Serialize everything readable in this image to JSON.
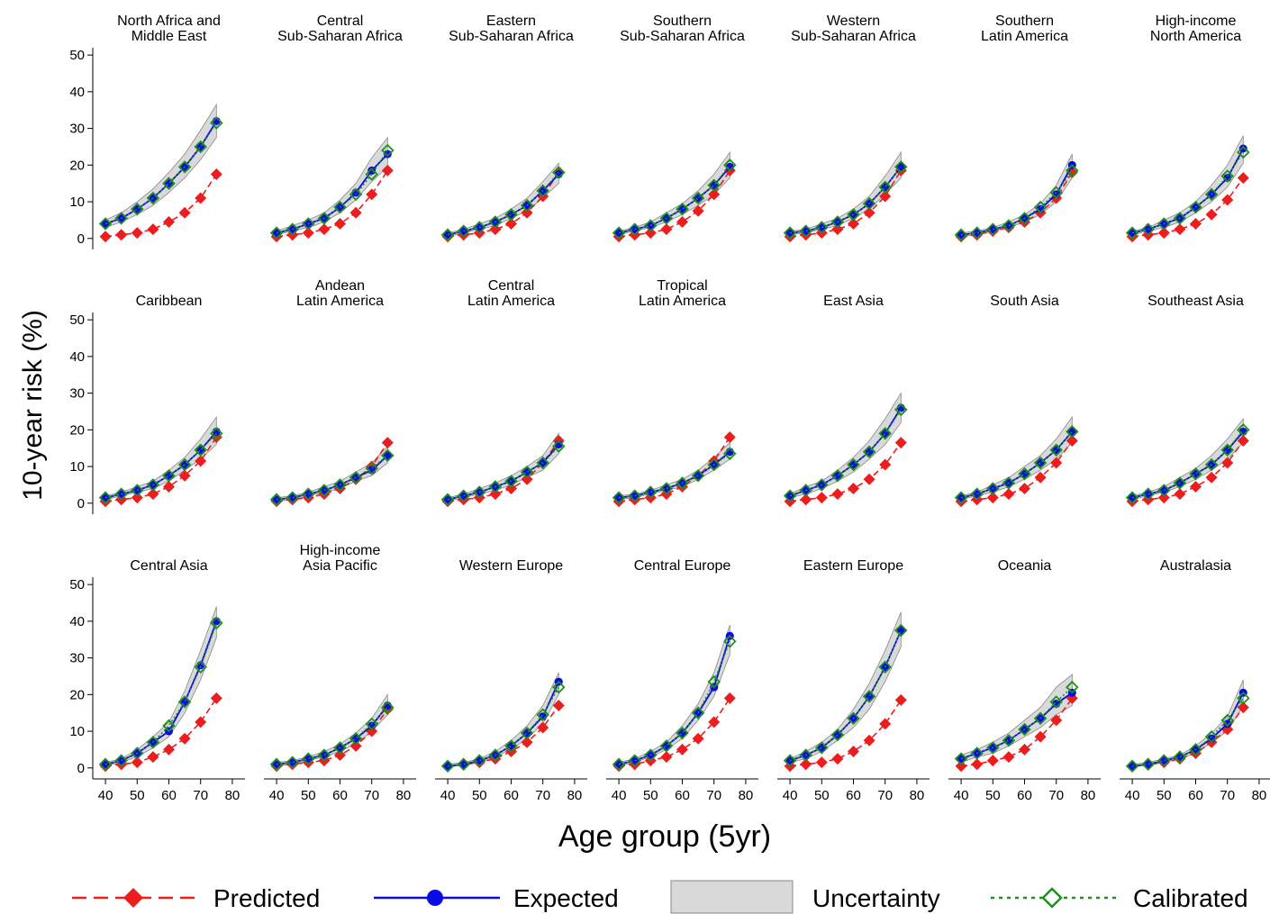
{
  "chart_data": {
    "type": "line",
    "y_label": "10-year risk (%)",
    "x_label": "Age group (5yr)",
    "x": [
      40,
      45,
      50,
      55,
      60,
      65,
      70,
      75
    ],
    "xlim": [
      36,
      84
    ],
    "xticks": [
      40,
      50,
      60,
      70,
      80
    ],
    "ylim": [
      -3,
      52
    ],
    "yticks": [
      0,
      10,
      20,
      30,
      40,
      50
    ],
    "legend": [
      {
        "name": "Predicted",
        "color": "#ee1c1c"
      },
      {
        "name": "Expected",
        "color": "#0a0ae6"
      },
      {
        "name": "Uncertainty",
        "color": "#d9d9d9"
      },
      {
        "name": "Calibrated",
        "color": "#1f8f1f"
      }
    ],
    "panels": [
      {
        "title": [
          "North Africa and",
          "Middle East"
        ],
        "predicted": [
          0.5,
          1,
          1.5,
          2.5,
          4.5,
          7,
          11,
          17.5
        ],
        "expected": [
          4,
          5.5,
          8,
          11,
          15,
          19.5,
          25,
          32
        ],
        "calibrated": [
          4,
          5.5,
          8,
          11,
          15,
          19.5,
          25,
          31.5
        ],
        "lower": [
          3,
          4.5,
          6.5,
          9,
          12.5,
          16.5,
          21.5,
          27.5
        ],
        "upper": [
          5,
          7,
          10,
          13.5,
          18,
          23,
          29.5,
          36.5
        ]
      },
      {
        "title": [
          "Central",
          "Sub-Saharan Africa"
        ],
        "predicted": [
          0.5,
          1,
          1.5,
          2.5,
          4,
          7,
          12,
          18.5
        ],
        "expected": [
          1.5,
          2.5,
          4,
          5.5,
          8.5,
          12.5,
          18.5,
          23
        ],
        "calibrated": [
          1.5,
          2.5,
          4,
          5.5,
          8.5,
          12,
          17.5,
          24
        ],
        "lower": [
          1,
          2,
          3,
          4.5,
          7,
          10.5,
          15.5,
          19.5
        ],
        "upper": [
          2,
          3.5,
          5,
          7,
          10.5,
          15,
          22,
          27.5
        ]
      },
      {
        "title": [
          "Eastern",
          "Sub-Saharan Africa"
        ],
        "predicted": [
          0.5,
          1,
          1.5,
          2.5,
          4,
          7,
          11.5,
          18
        ],
        "expected": [
          1,
          2,
          3,
          4.5,
          6.5,
          9,
          13,
          17.5
        ],
        "calibrated": [
          1,
          2,
          3,
          4.5,
          6.5,
          9,
          13,
          18
        ],
        "lower": [
          0.5,
          1.5,
          2.5,
          3.5,
          5.5,
          7.5,
          11,
          15
        ],
        "upper": [
          1.5,
          2.5,
          4,
          5.5,
          8,
          11,
          15.5,
          20.5
        ]
      },
      {
        "title": [
          "Southern",
          "Sub-Saharan Africa"
        ],
        "predicted": [
          0.5,
          1,
          1.5,
          2.5,
          4.5,
          7.5,
          12,
          18.5
        ],
        "expected": [
          1.5,
          2.5,
          3.5,
          5.5,
          8,
          11,
          14.5,
          19.5
        ],
        "calibrated": [
          1.5,
          2.5,
          3.5,
          5.5,
          8,
          11,
          14.5,
          20
        ],
        "lower": [
          1,
          2,
          3,
          4.5,
          6.5,
          9,
          12,
          16.5
        ],
        "upper": [
          2,
          3,
          4.5,
          7,
          9.5,
          13,
          17.5,
          23.5
        ]
      },
      {
        "title": [
          "Western",
          "Sub-Saharan Africa"
        ],
        "predicted": [
          0.5,
          1,
          1.5,
          2.5,
          4,
          7,
          11.5,
          18.5
        ],
        "expected": [
          1.5,
          2,
          3,
          4.5,
          6.5,
          9.5,
          14,
          19.5
        ],
        "calibrated": [
          1.5,
          2,
          3,
          4.5,
          6.5,
          9.5,
          14,
          19.5
        ],
        "lower": [
          1,
          1.5,
          2.5,
          3.5,
          5.5,
          8,
          12,
          16.5
        ],
        "upper": [
          2,
          2.5,
          4,
          5.5,
          8,
          11.5,
          17,
          23.5
        ]
      },
      {
        "title": [
          "Southern",
          "Latin America"
        ],
        "predicted": [
          0.5,
          1,
          2,
          3,
          4.5,
          7,
          11,
          18
        ],
        "expected": [
          1,
          1.5,
          2.5,
          3.5,
          5.5,
          8,
          12,
          20
        ],
        "calibrated": [
          1,
          1.5,
          2.5,
          3.5,
          5.5,
          8.5,
          12.5,
          18.5
        ],
        "lower": [
          0.5,
          1,
          2,
          3,
          4.5,
          6.5,
          10,
          16.5
        ],
        "upper": [
          1.5,
          2,
          3,
          4.5,
          6.5,
          9.5,
          14.5,
          23
        ]
      },
      {
        "title": [
          "High-income",
          "North America"
        ],
        "predicted": [
          0.5,
          1,
          1.5,
          2.5,
          4,
          6.5,
          10.5,
          16.5
        ],
        "expected": [
          1.5,
          2.5,
          4,
          5.5,
          8.5,
          12,
          16.5,
          24.5
        ],
        "calibrated": [
          1.5,
          2.5,
          4,
          5.5,
          8.5,
          12,
          17,
          23.5
        ],
        "lower": [
          1,
          2,
          3,
          4.5,
          7,
          10,
          14,
          20.5
        ],
        "upper": [
          2,
          3,
          5,
          7,
          10,
          14.5,
          20,
          28
        ]
      },
      {
        "title": [
          "Caribbean"
        ],
        "predicted": [
          0.5,
          1,
          1.5,
          2.5,
          4.5,
          7.5,
          11.5,
          18
        ],
        "expected": [
          1.5,
          2.5,
          3.5,
          5,
          7.5,
          10.5,
          14.5,
          19.5
        ],
        "calibrated": [
          1.5,
          2.5,
          3.5,
          5,
          7.5,
          10.5,
          14.5,
          19
        ],
        "lower": [
          1,
          2,
          3,
          4,
          6,
          9,
          12,
          16
        ],
        "upper": [
          2,
          3,
          4.5,
          6,
          9,
          12.5,
          17.5,
          23.5
        ]
      },
      {
        "title": [
          "Andean",
          "Latin America"
        ],
        "predicted": [
          0.5,
          1,
          1.5,
          2.5,
          4,
          6.5,
          10,
          16.5
        ],
        "expected": [
          1,
          1.5,
          2.5,
          3.5,
          5,
          7,
          9,
          13
        ],
        "calibrated": [
          1,
          1.5,
          2.5,
          3.5,
          5,
          7,
          9.5,
          13
        ],
        "lower": [
          0.5,
          1,
          2,
          3,
          4,
          6,
          7.5,
          11
        ],
        "upper": [
          1.5,
          2,
          3,
          4.5,
          6,
          8.5,
          11,
          15.5
        ]
      },
      {
        "title": [
          "Central",
          "Latin America"
        ],
        "predicted": [
          0.5,
          1,
          1.5,
          2.5,
          4,
          6.5,
          11,
          17
        ],
        "expected": [
          1,
          2,
          3,
          4.5,
          6,
          8.5,
          11,
          16
        ],
        "calibrated": [
          1,
          2,
          3,
          4.5,
          6,
          8.5,
          11,
          15.5
        ],
        "lower": [
          0.5,
          1.5,
          2.5,
          3.5,
          5,
          7,
          9,
          13.5
        ],
        "upper": [
          1.5,
          2.5,
          4,
          5.5,
          7.5,
          10,
          13,
          19
        ]
      },
      {
        "title": [
          "Tropical",
          "Latin America"
        ],
        "predicted": [
          0.5,
          1,
          1.5,
          2.5,
          4.5,
          7.5,
          11.5,
          18
        ],
        "expected": [
          1.5,
          2,
          3,
          4,
          5.5,
          7.5,
          10.5,
          14
        ],
        "calibrated": [
          1.5,
          2,
          3,
          4,
          5.5,
          7.5,
          10.5,
          13.5
        ],
        "lower": [
          1,
          1.5,
          2.5,
          3.5,
          4.5,
          6.5,
          9,
          12
        ],
        "upper": [
          2,
          2.5,
          3.5,
          5,
          6.5,
          9,
          12.5,
          16.5
        ]
      },
      {
        "title": [
          "East Asia"
        ],
        "predicted": [
          0.5,
          1,
          1.5,
          2.5,
          4,
          6.5,
          10.5,
          16.5
        ],
        "expected": [
          2,
          3.5,
          5,
          7.5,
          10.5,
          14,
          19,
          26
        ],
        "calibrated": [
          2,
          3.5,
          5,
          7.5,
          10.5,
          14,
          19,
          25.5
        ],
        "lower": [
          1.5,
          2.5,
          4,
          6,
          8.5,
          12,
          16,
          22
        ],
        "upper": [
          2.5,
          4.5,
          6,
          9,
          12.5,
          17,
          23,
          30
        ]
      },
      {
        "title": [
          "South Asia"
        ],
        "predicted": [
          0.5,
          1,
          1.5,
          2.5,
          4,
          7,
          11,
          17
        ],
        "expected": [
          1.5,
          2.5,
          4,
          5.5,
          8,
          11,
          14.5,
          19.5
        ],
        "calibrated": [
          1.5,
          2.5,
          4,
          5.5,
          8,
          11,
          14.5,
          19.5
        ],
        "lower": [
          1,
          2,
          3,
          4.5,
          6.5,
          9,
          12,
          16.5
        ],
        "upper": [
          2,
          3,
          5,
          7,
          10,
          13,
          17.5,
          23.5
        ]
      },
      {
        "title": [
          "Southeast Asia"
        ],
        "predicted": [
          0.5,
          1,
          1.5,
          2.5,
          4.5,
          7,
          11,
          17
        ],
        "expected": [
          1.5,
          2.5,
          3.5,
          5.5,
          8,
          10.5,
          14.5,
          19.5
        ],
        "calibrated": [
          1.5,
          2.5,
          3.5,
          5.5,
          8,
          10.5,
          14.5,
          20
        ],
        "lower": [
          1,
          2,
          3,
          4.5,
          6.5,
          9,
          12,
          16.5
        ],
        "upper": [
          2,
          3,
          4.5,
          7,
          9.5,
          13,
          17.5,
          23
        ]
      },
      {
        "title": [
          "Central Asia"
        ],
        "predicted": [
          0.5,
          1,
          1.5,
          3,
          5,
          8,
          12.5,
          19
        ],
        "expected": [
          1,
          2,
          4,
          7,
          10,
          18,
          28,
          40
        ],
        "calibrated": [
          1,
          2,
          4,
          7,
          11.5,
          18,
          27.5,
          39.5
        ],
        "lower": [
          0.5,
          1.5,
          3,
          5.5,
          8.5,
          15,
          24,
          35.5
        ],
        "upper": [
          1.5,
          2.5,
          5,
          8.5,
          12.5,
          21,
          32,
          44
        ]
      },
      {
        "title": [
          "High-income",
          "Asia Pacific"
        ],
        "predicted": [
          0.5,
          1,
          1.5,
          2,
          3.5,
          6,
          10,
          16
        ],
        "expected": [
          1,
          1.5,
          2.5,
          3.5,
          5.5,
          8,
          11.5,
          17
        ],
        "calibrated": [
          1,
          1.5,
          2.5,
          3.5,
          5.5,
          8,
          12,
          16.5
        ],
        "lower": [
          0.5,
          1,
          2,
          3,
          4.5,
          6.5,
          10,
          14.5
        ],
        "upper": [
          1.5,
          2,
          3,
          4.5,
          6.5,
          9.5,
          13.5,
          20
        ]
      },
      {
        "title": [
          "Western Europe"
        ],
        "predicted": [
          0.5,
          1,
          1.5,
          2.5,
          4.5,
          7,
          11,
          17
        ],
        "expected": [
          0.5,
          1,
          2,
          3.5,
          6,
          9.5,
          14,
          23.5
        ],
        "calibrated": [
          0.5,
          1,
          2,
          3.5,
          6,
          9.5,
          14.5,
          22
        ],
        "lower": [
          0.3,
          0.7,
          1.5,
          3,
          5,
          8,
          12,
          20
        ],
        "upper": [
          1,
          1.5,
          2.5,
          4.5,
          7.5,
          11.5,
          17,
          26
        ]
      },
      {
        "title": [
          "Central Europe"
        ],
        "predicted": [
          0.5,
          1,
          2,
          3,
          5,
          8,
          12.5,
          19
        ],
        "expected": [
          1,
          2,
          3.5,
          6,
          9.5,
          15,
          22,
          36
        ],
        "calibrated": [
          1,
          2,
          3.5,
          6,
          9.5,
          15,
          23.5,
          34.5
        ],
        "lower": [
          0.5,
          1.5,
          3,
          5,
          8,
          13,
          19.5,
          31
        ],
        "upper": [
          1.5,
          2.5,
          4.5,
          7,
          11.5,
          17.5,
          26,
          39
        ]
      },
      {
        "title": [
          "Eastern Europe"
        ],
        "predicted": [
          0.5,
          1,
          1.5,
          2.5,
          4.5,
          7.5,
          12,
          18.5
        ],
        "expected": [
          2,
          3.5,
          5.5,
          9,
          13.5,
          19.5,
          27.5,
          37.5
        ],
        "calibrated": [
          2,
          3.5,
          5.5,
          9,
          13.5,
          19.5,
          27.5,
          37.5
        ],
        "lower": [
          1.5,
          2.5,
          4.5,
          7.5,
          11,
          16,
          23.5,
          33
        ],
        "upper": [
          2.5,
          4.5,
          7,
          10.5,
          16,
          23,
          32,
          42.5
        ]
      },
      {
        "title": [
          "Oceania"
        ],
        "predicted": [
          0.5,
          1,
          2,
          3,
          5,
          8.5,
          13,
          19
        ],
        "expected": [
          2.5,
          4,
          5.5,
          7.5,
          10.5,
          13.5,
          17.5,
          20.5
        ],
        "calibrated": [
          2.5,
          4,
          5.5,
          7.5,
          10.5,
          13.5,
          18,
          22
        ],
        "lower": [
          1.5,
          3,
          4,
          6,
          8.5,
          11,
          14.5,
          17
        ],
        "upper": [
          3.5,
          5,
          7,
          9.5,
          13,
          16.5,
          22,
          25.5
        ]
      },
      {
        "title": [
          "Australasia"
        ],
        "predicted": [
          0.5,
          1,
          1.5,
          2.5,
          4,
          7,
          10.5,
          16.5
        ],
        "expected": [
          0.5,
          1,
          2,
          3,
          5,
          8,
          12,
          20.5
        ],
        "calibrated": [
          0.5,
          1,
          2,
          3,
          5,
          8.5,
          13,
          19
        ],
        "lower": [
          0.3,
          0.7,
          1.5,
          2.5,
          4,
          7,
          10,
          17
        ],
        "upper": [
          1,
          1.5,
          2.5,
          3.5,
          6,
          9.5,
          14,
          24
        ]
      }
    ]
  }
}
